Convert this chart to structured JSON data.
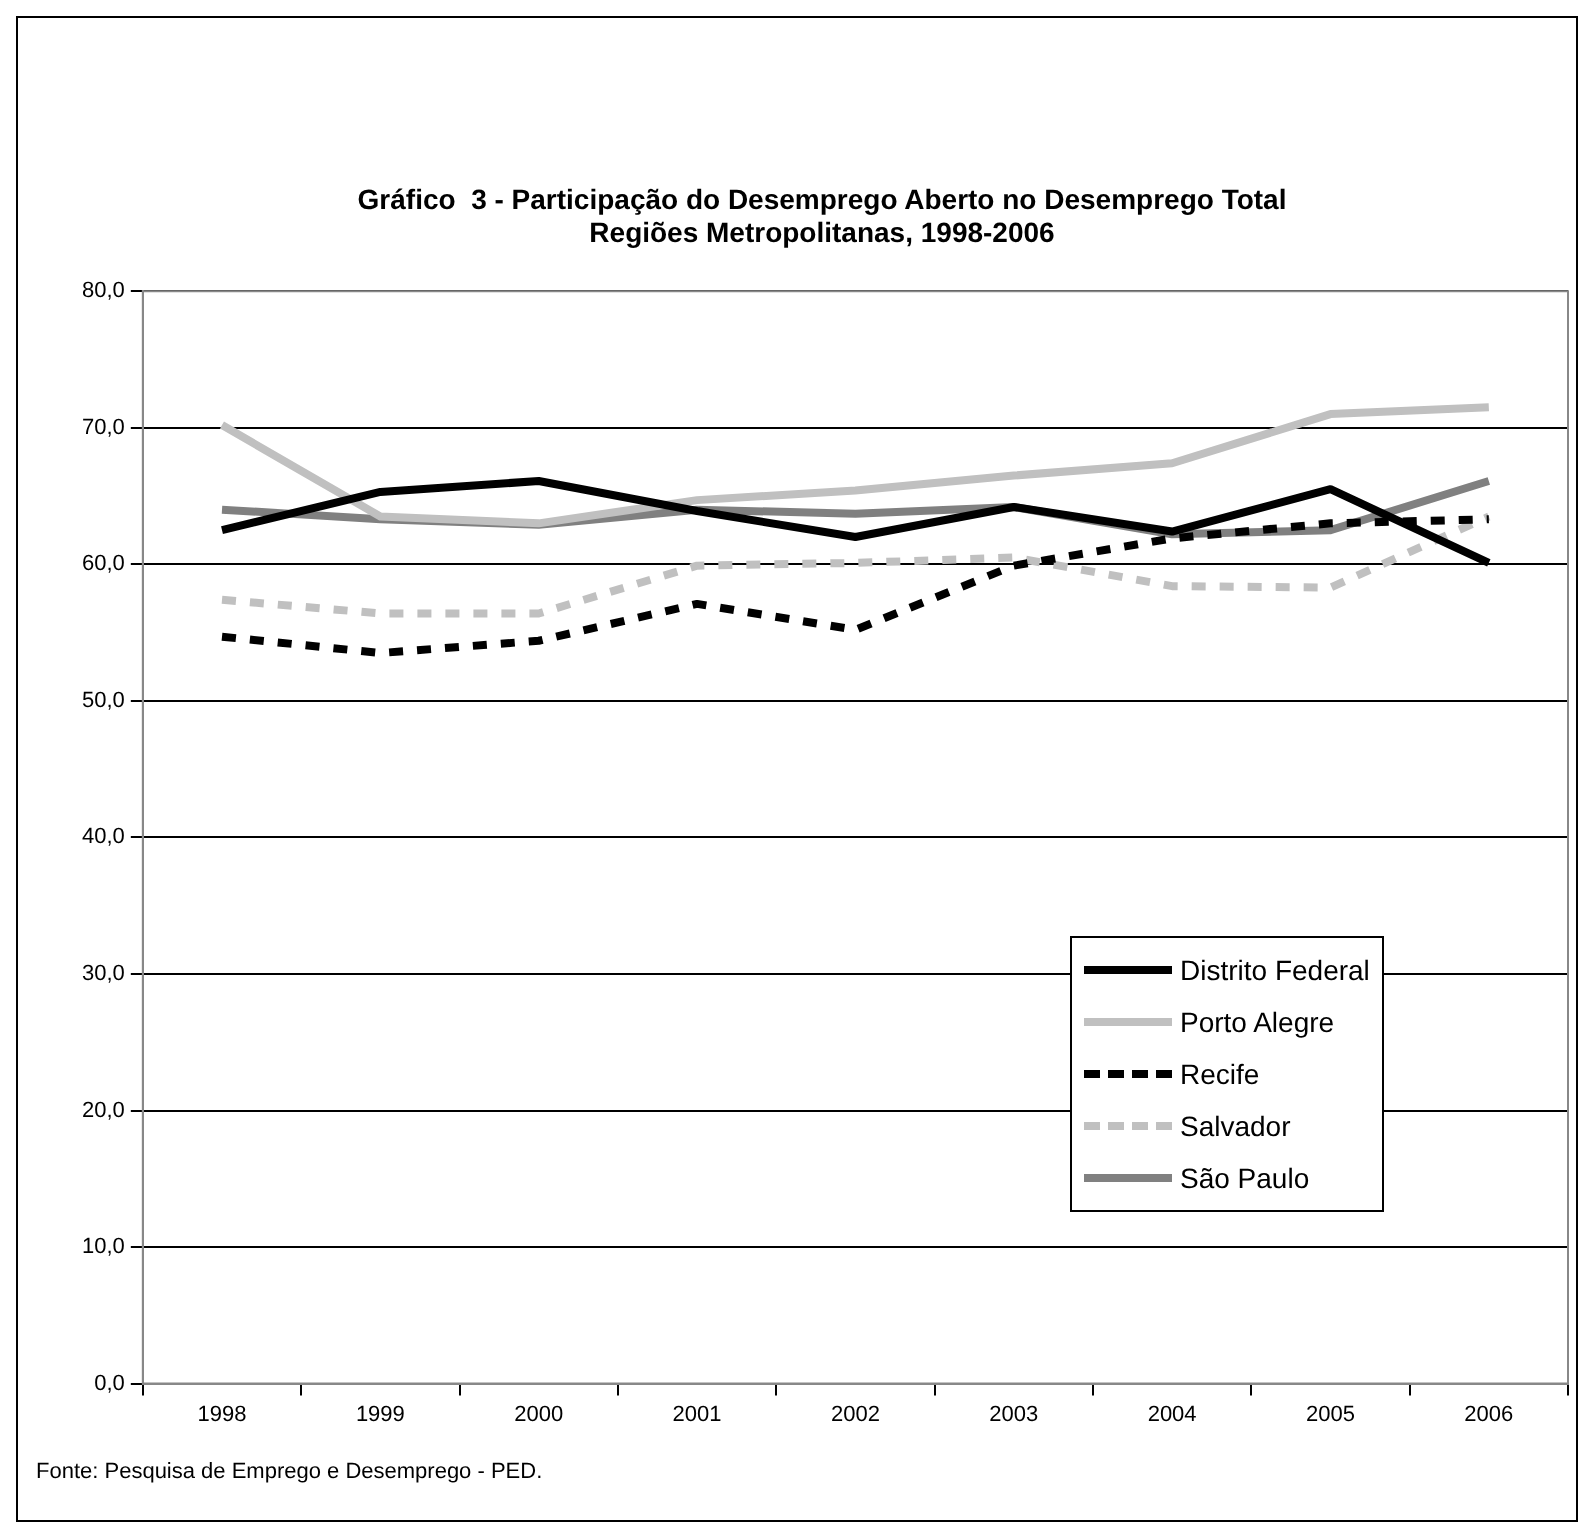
{
  "chart_data": {
    "type": "line",
    "title": "Gráfico  3 - Participação do Desemprego Aberto no Desemprego Total\nRegiões Metropolitanas, 1998-2006",
    "categories": [
      "1998",
      "1999",
      "2000",
      "2001",
      "2002",
      "2003",
      "2004",
      "2005",
      "2006"
    ],
    "series": [
      {
        "name": "Distrito Federal",
        "color": "#000000",
        "line_style": "solid",
        "values": [
          62.5,
          65.3,
          66.1,
          63.9,
          62.0,
          64.2,
          62.4,
          65.5,
          60.1
        ]
      },
      {
        "name": "Porto Alegre",
        "color": "#c0c0c0",
        "line_style": "solid",
        "values": [
          70.2,
          63.5,
          63.0,
          64.7,
          65.4,
          66.5,
          67.4,
          71.0,
          71.5
        ]
      },
      {
        "name": "Recife",
        "color": "#000000",
        "line_style": "dashed",
        "values": [
          54.7,
          53.5,
          54.4,
          57.1,
          55.2,
          59.9,
          61.9,
          63.0,
          63.3
        ]
      },
      {
        "name": "Salvador",
        "color": "#c0c0c0",
        "line_style": "dashed",
        "values": [
          57.4,
          56.4,
          56.4,
          59.9,
          60.1,
          60.5,
          58.4,
          58.3,
          63.5
        ]
      },
      {
        "name": "São Paulo",
        "color": "#808080",
        "line_style": "solid",
        "values": [
          64.0,
          63.3,
          62.9,
          64.0,
          63.7,
          64.2,
          62.2,
          62.5,
          66.1
        ]
      }
    ],
    "ylim": [
      0,
      80
    ],
    "yticks": [
      {
        "value": 0,
        "label": "0,0"
      },
      {
        "value": 10,
        "label": "10,0"
      },
      {
        "value": 20,
        "label": "20,0"
      },
      {
        "value": 30,
        "label": "30,0"
      },
      {
        "value": 40,
        "label": "40,0"
      },
      {
        "value": 50,
        "label": "50,0"
      },
      {
        "value": 60,
        "label": "60,0"
      },
      {
        "value": 70,
        "label": "70,0"
      },
      {
        "value": 80,
        "label": "80,0"
      }
    ],
    "grid": "y",
    "legend": "bottom right",
    "marker": "none",
    "annotations": [
      "Fonte: Pesquisa de Emprego e Desemprego - PED."
    ]
  }
}
